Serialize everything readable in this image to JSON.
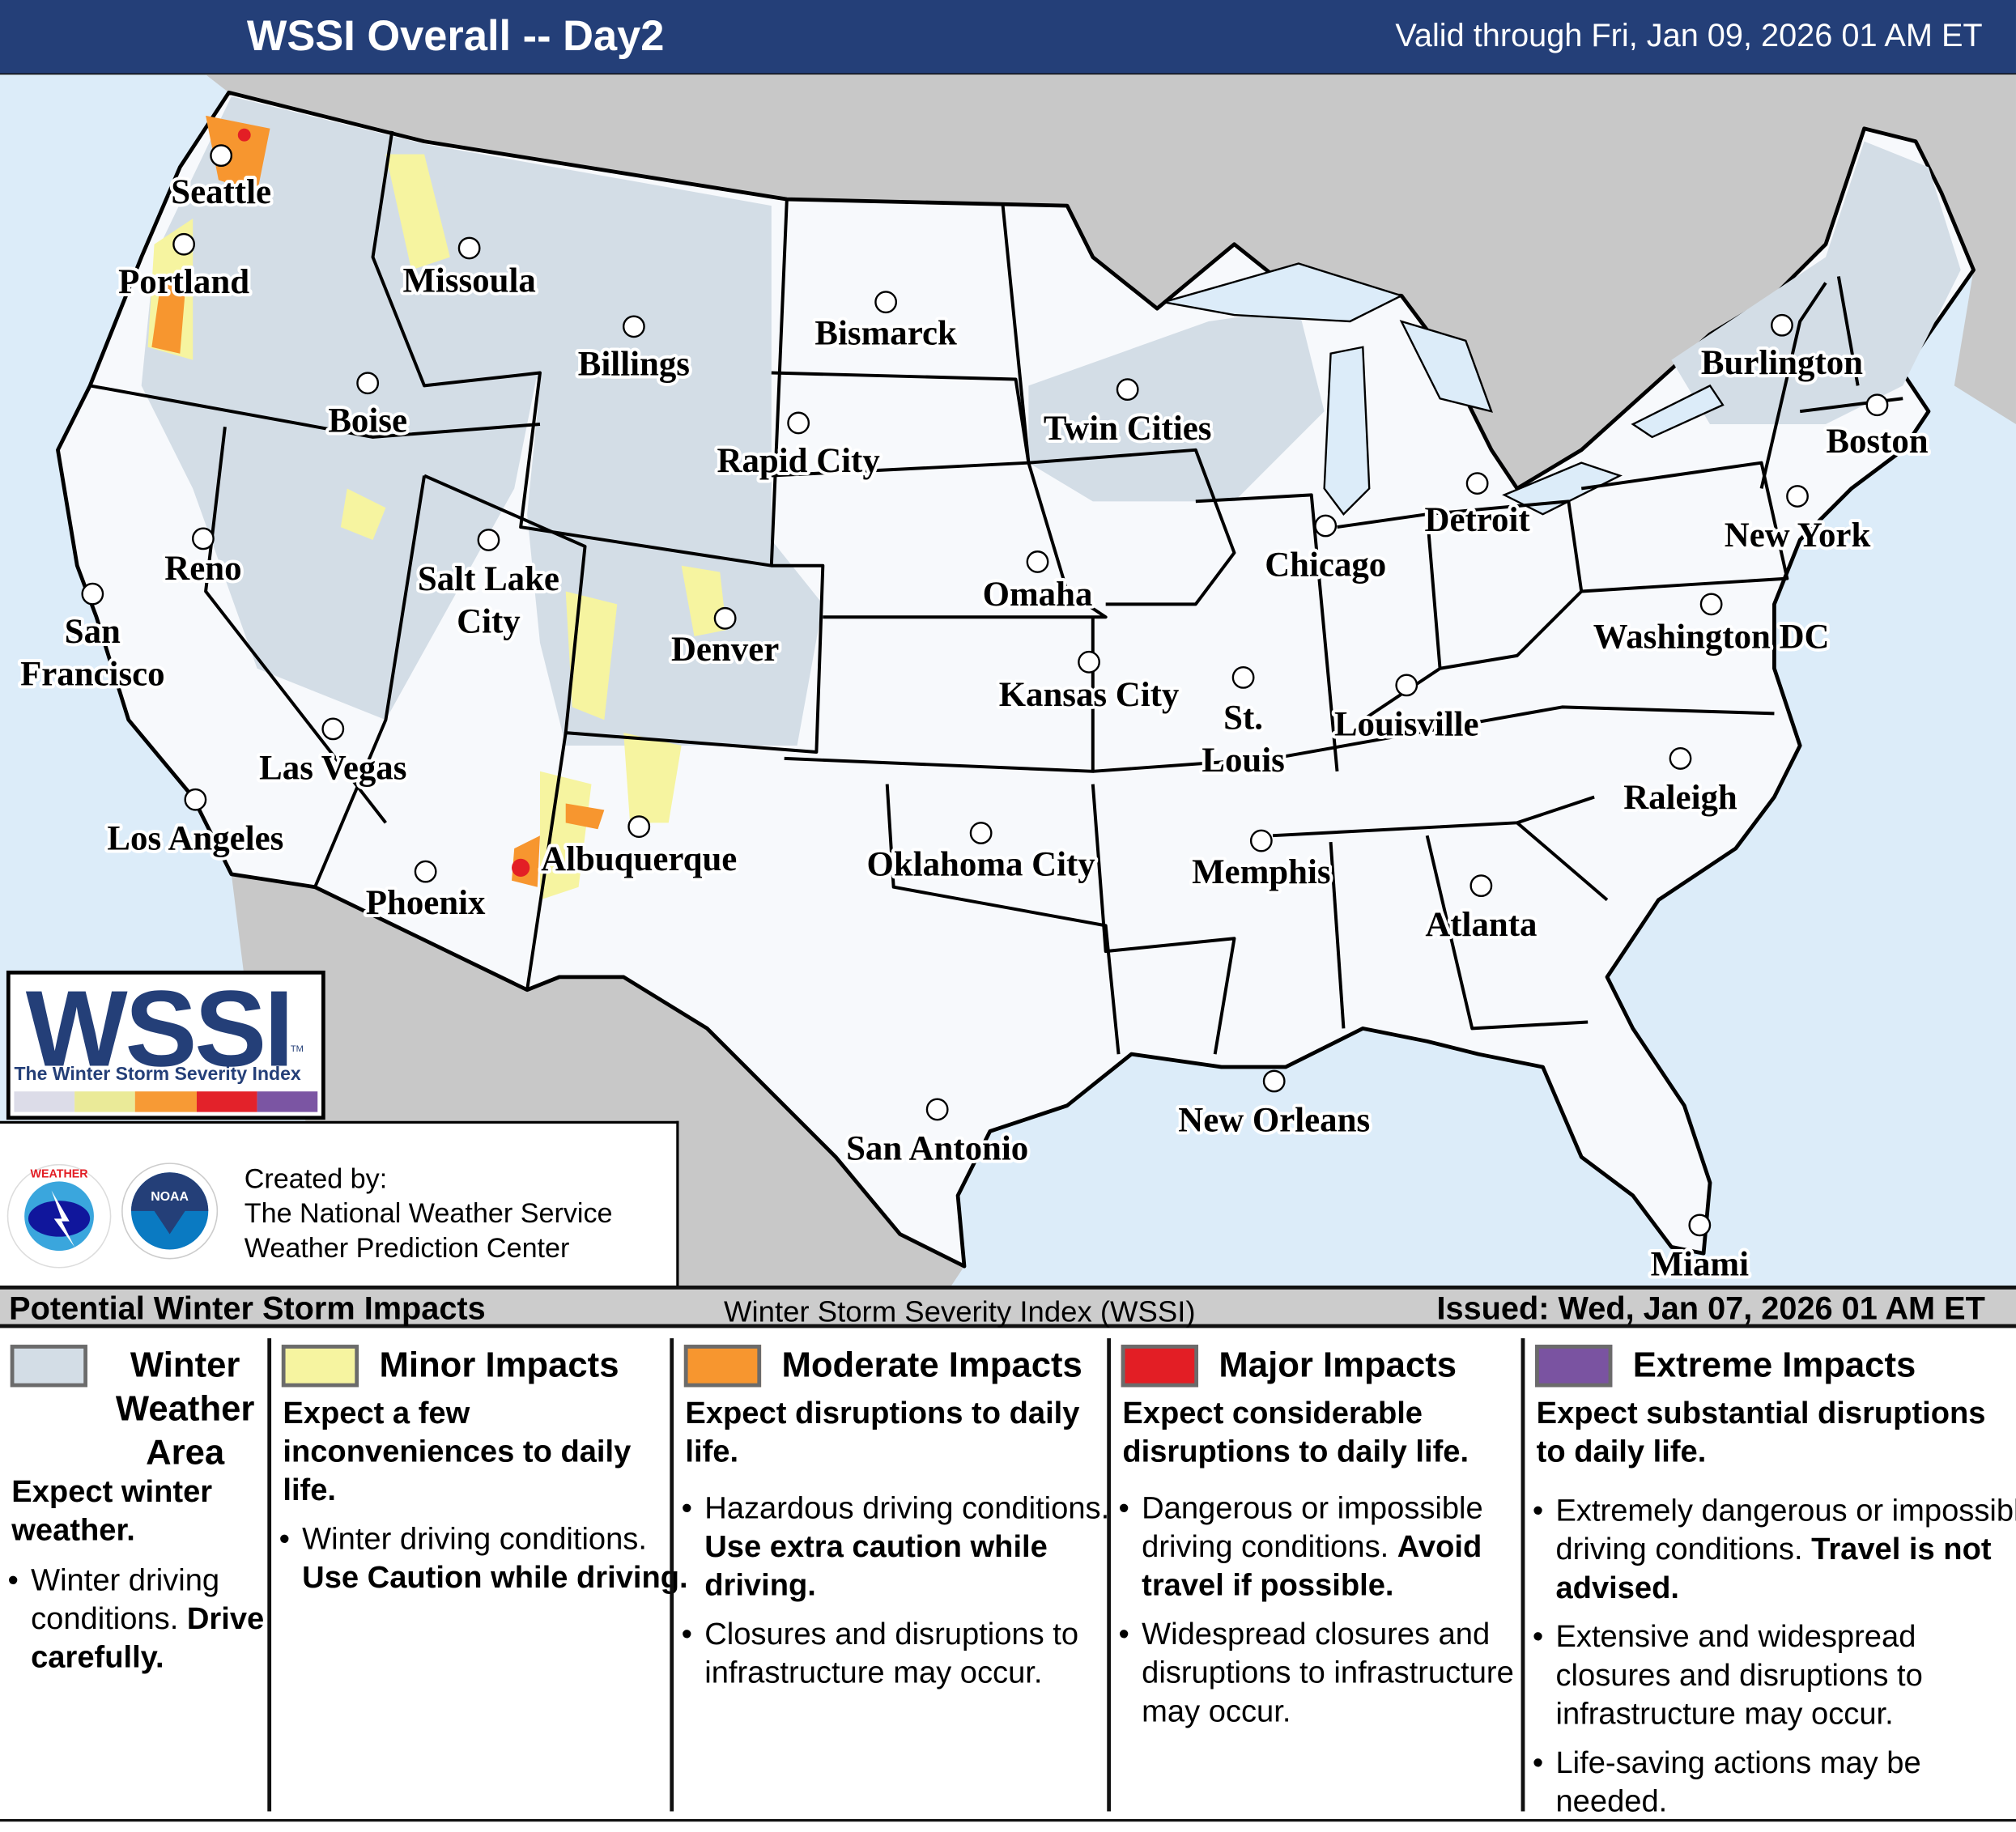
{
  "header": {
    "title": "WSSI Overall -- Day2",
    "valid": "Valid through Fri, Jan 09, 2026 01 AM ET"
  },
  "colors": {
    "header_bg": "#243f78",
    "ocean": "#dcecf9",
    "foreign_land": "#c8c8c8",
    "us_land": "#f7f9fc",
    "winter_weather_area": "#d3dde6",
    "minor": "#f6f4a0",
    "moderate": "#f7962f",
    "major": "#e31e25",
    "extreme": "#7a53a1"
  },
  "cities": [
    "Seattle",
    "Portland",
    "Missoula",
    "Billings",
    "Bismarck",
    "Boise",
    "Rapid City",
    "Twin Cities",
    "Burlington",
    "Boston",
    "Detroit",
    "New York",
    "Chicago",
    "Reno",
    "Salt Lake City",
    "Omaha",
    "San Francisco",
    "Denver",
    "Washington DC",
    "Kansas City",
    "St. Louis",
    "Louisville",
    "Las Vegas",
    "Raleigh",
    "Los Angeles",
    "Albuquerque",
    "Oklahoma City",
    "Memphis",
    "Phoenix",
    "Atlanta",
    "New Orleans",
    "San Antonio",
    "Miami"
  ],
  "logo": {
    "wssi": "WSSI",
    "tm": "TM",
    "subtitle": "The Winter Storm Severity Index",
    "scale_colors": [
      "#dcdce8",
      "#eaea98",
      "#f79a35",
      "#e3222a",
      "#7b55a3"
    ]
  },
  "credits": {
    "line1": "Created by:",
    "line2": "The National Weather Service",
    "line3": "Weather Prediction Center",
    "nws_logo_text": "NATIONAL WEATHER SERVICE",
    "noaa_logo_text": "NOAA"
  },
  "legend": {
    "header_left": "Potential Winter Storm Impacts",
    "header_center": "Winter Storm Severity Index (WSSI)",
    "header_right": "Issued: Wed, Jan 07, 2026 01 AM ET",
    "categories": [
      {
        "title": "Winter Weather Area",
        "color": "#d3dde6",
        "summary": "Expect winter weather.",
        "bullets": [
          [
            "Winter driving conditions.",
            "Drive carefully."
          ]
        ]
      },
      {
        "title": "Minor Impacts",
        "color": "#f6f4a0",
        "summary": "Expect a few inconveniences to daily life.",
        "bullets": [
          [
            "Winter driving conditions.",
            "Use Caution while driving."
          ]
        ]
      },
      {
        "title": "Moderate Impacts",
        "color": "#f7962f",
        "summary": "Expect disruptions to daily life.",
        "bullets": [
          [
            "Hazardous driving conditions.",
            "Use extra caution while driving."
          ],
          [
            "Closures and disruptions to infrastructure may occur.",
            ""
          ]
        ]
      },
      {
        "title": "Major Impacts",
        "color": "#e31e25",
        "summary": "Expect considerable disruptions to daily life.",
        "bullets": [
          [
            "Dangerous or impossible driving conditions.",
            "Avoid travel if possible."
          ],
          [
            "Widespread closures and disruptions to infrastructure may occur.",
            ""
          ]
        ]
      },
      {
        "title": "Extreme Impacts",
        "color": "#7a53a1",
        "summary": "Expect substantial disruptions to daily life.",
        "bullets": [
          [
            "Extremely dangerous or impossible driving conditions.",
            "Travel is not advised."
          ],
          [
            "Extensive and widespread closures and disruptions to infrastructure may occur.",
            ""
          ],
          [
            "Life-saving actions may be needed.",
            ""
          ]
        ]
      }
    ]
  }
}
